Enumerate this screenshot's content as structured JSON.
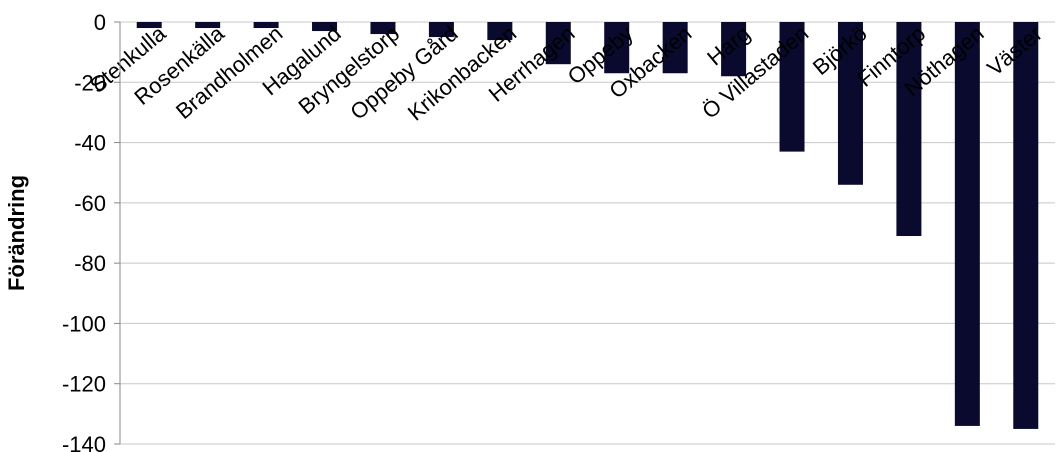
{
  "chart_data": {
    "type": "bar",
    "title": "",
    "xlabel": "",
    "ylabel": "Förändring",
    "ylim": [
      -140,
      0
    ],
    "yticks": [
      0,
      -20,
      -40,
      -60,
      -80,
      -100,
      -120,
      -140
    ],
    "grid": true,
    "legend": "none",
    "bar_color": "#0a0a2e",
    "categories": [
      "Stenkulla",
      "Rosenkälla",
      "Brandholmen",
      "Hagalund",
      "Bryngelstorp",
      "Oppeby Gård",
      "Krikonbacken",
      "Herrhagen",
      "Oppeby",
      "Oxbacken",
      "Harg",
      "Ö Villastaden",
      "Björkö",
      "Finntorp",
      "Nöthagen",
      "Väster"
    ],
    "values": [
      -2,
      -2,
      -2,
      -3,
      -4,
      -5,
      -6,
      -14,
      -17,
      -17,
      -18,
      -43,
      -54,
      -71,
      -134,
      -135
    ]
  }
}
